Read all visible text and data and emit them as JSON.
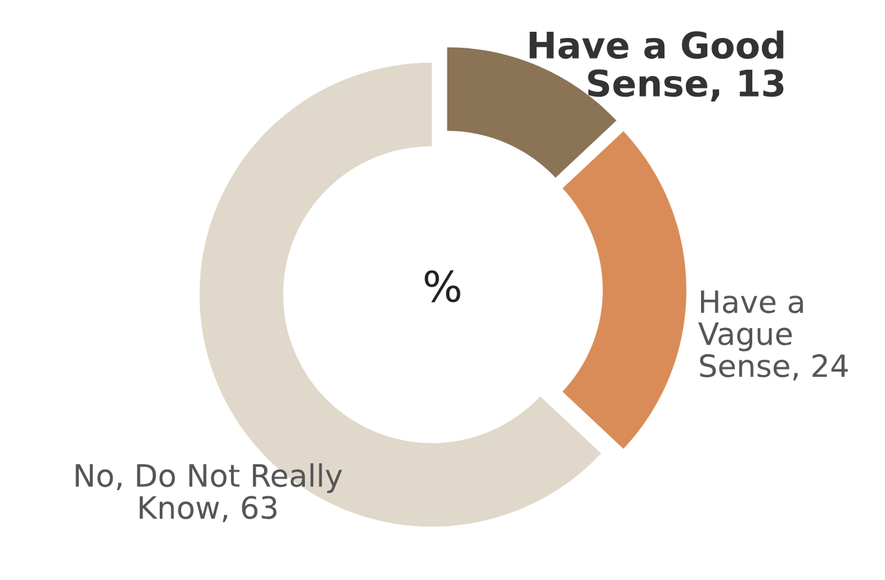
{
  "chart_data": {
    "type": "donut",
    "categories": [
      "Have a Good Sense, 13",
      "Have a Vague Sense, 24",
      "No, Do Not Really Know, 63"
    ],
    "values": [
      13,
      24,
      63
    ],
    "colors": [
      "#8b7355",
      "#d98c57",
      "#e0d8ca"
    ],
    "annotations": [
      "%"
    ],
    "legend": false
  }
}
